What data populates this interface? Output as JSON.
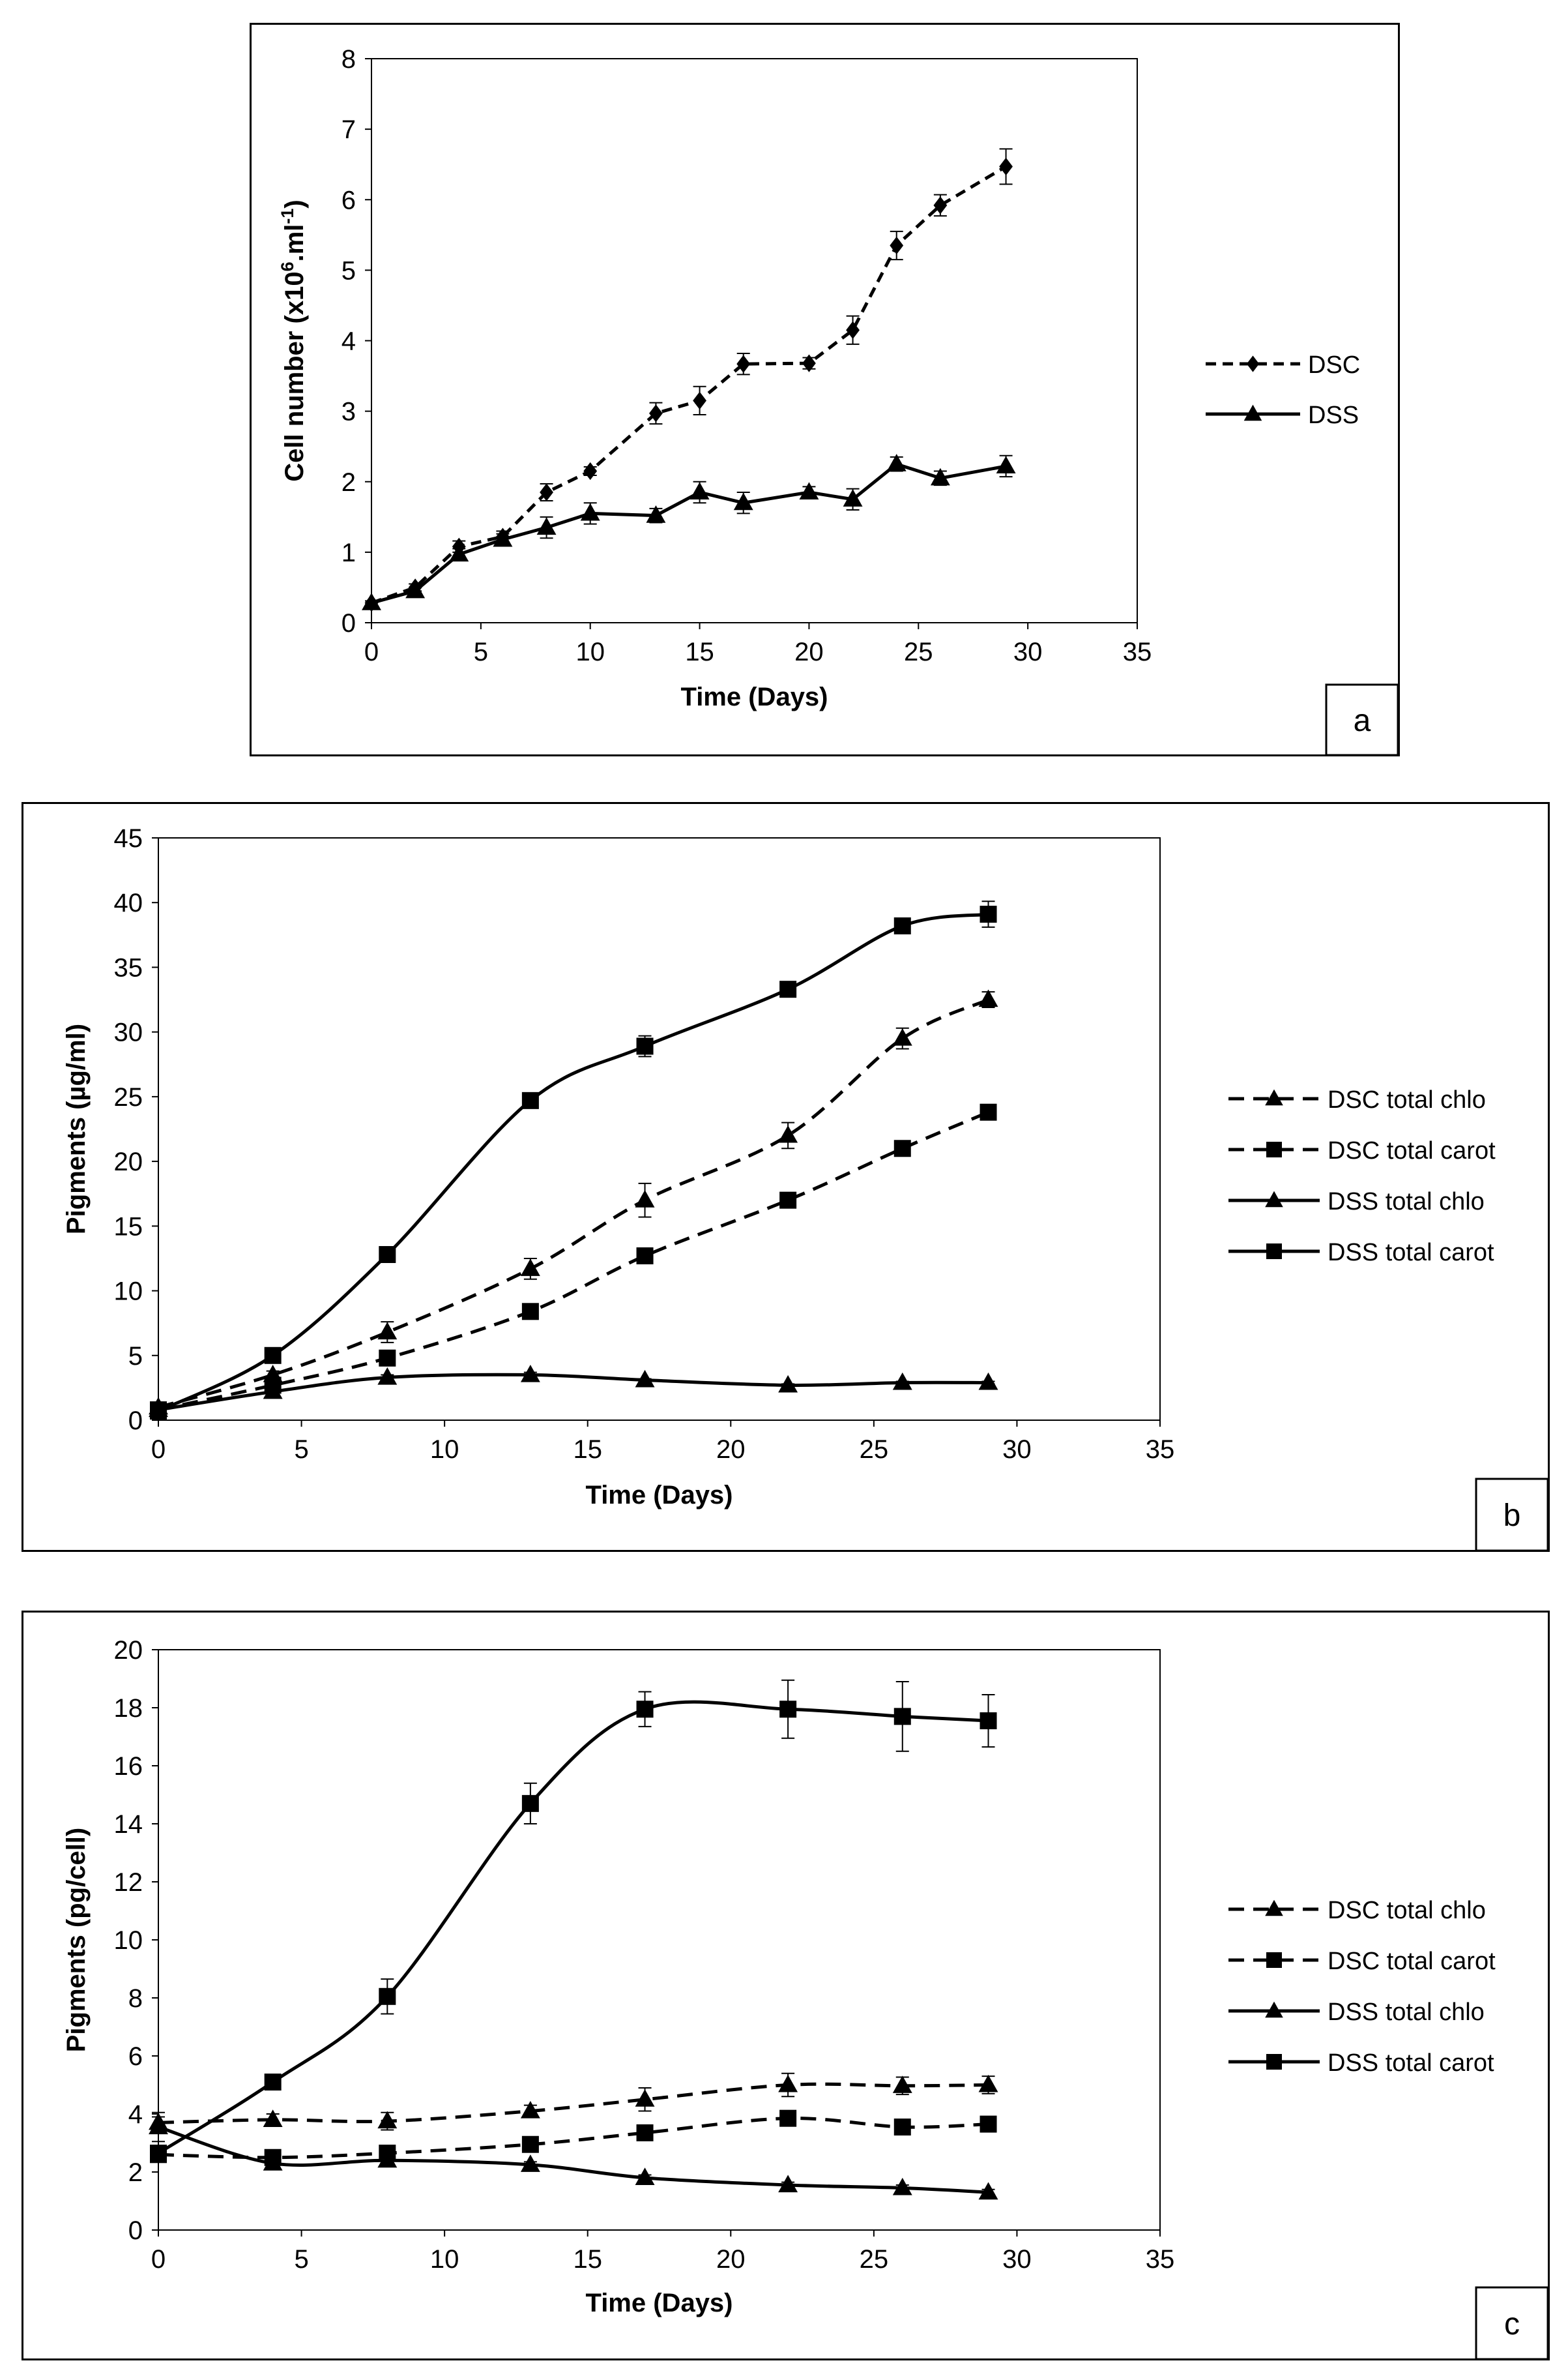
{
  "chart_data": [
    {
      "panel_label": "a",
      "type": "line",
      "xlabel": "Time (Days)",
      "ylabel": "Cell number (x10",
      "ylabel_sup": "6",
      "ylabel_mid": ".ml",
      "ylabel_sup2": "-1",
      "ylabel_end": ")",
      "xlim": [
        0,
        35
      ],
      "ylim": [
        0,
        8
      ],
      "xticks": [
        0,
        5,
        10,
        15,
        20,
        25,
        30,
        35
      ],
      "yticks": [
        0,
        1,
        2,
        3,
        4,
        5,
        6,
        7,
        8
      ],
      "legend_position": "right",
      "series": [
        {
          "name": "DSC",
          "marker": "diamond",
          "dash": true,
          "x": [
            0,
            2,
            4,
            6,
            8,
            10,
            13,
            15,
            17,
            20,
            22,
            24,
            26,
            29
          ],
          "y": [
            0.28,
            0.5,
            1.08,
            1.22,
            1.85,
            2.15,
            2.97,
            3.15,
            3.67,
            3.68,
            4.15,
            5.35,
            5.92,
            6.47
          ],
          "err": [
            0.03,
            0.05,
            0.08,
            0.08,
            0.12,
            0.06,
            0.15,
            0.2,
            0.15,
            0.08,
            0.2,
            0.2,
            0.15,
            0.25
          ]
        },
        {
          "name": "DSS",
          "marker": "triangle",
          "dash": false,
          "x": [
            0,
            2,
            4,
            6,
            8,
            10,
            13,
            15,
            17,
            20,
            22,
            24,
            26,
            29
          ],
          "y": [
            0.28,
            0.45,
            0.97,
            1.18,
            1.35,
            1.55,
            1.52,
            1.85,
            1.7,
            1.85,
            1.75,
            2.25,
            2.05,
            2.22
          ],
          "err": [
            0.03,
            0.05,
            0.08,
            0.08,
            0.15,
            0.15,
            0.1,
            0.15,
            0.15,
            0.08,
            0.15,
            0.1,
            0.1,
            0.15
          ]
        }
      ]
    },
    {
      "panel_label": "b",
      "type": "line",
      "xlabel": "Time (Days)",
      "ylabel": "Pigments (µg/ml)",
      "xlim": [
        0,
        35
      ],
      "ylim": [
        0,
        45
      ],
      "xticks": [
        0,
        5,
        10,
        15,
        20,
        25,
        30,
        35
      ],
      "yticks": [
        0,
        5,
        10,
        15,
        20,
        25,
        30,
        35,
        40,
        45
      ],
      "legend_position": "right",
      "series": [
        {
          "name": "DSC total chlo",
          "marker": "triangle",
          "dash": true,
          "x": [
            0,
            4,
            8,
            13,
            17,
            22,
            26,
            29
          ],
          "y": [
            1.0,
            3.5,
            6.8,
            11.7,
            17.0,
            22.0,
            29.5,
            32.5
          ],
          "err": [
            0.1,
            0.3,
            0.8,
            0.8,
            1.3,
            1.0,
            0.8,
            0.6
          ]
        },
        {
          "name": "DSC total carot",
          "marker": "square",
          "dash": true,
          "x": [
            0,
            4,
            8,
            13,
            17,
            22,
            26,
            29
          ],
          "y": [
            0.8,
            2.7,
            4.8,
            8.4,
            12.7,
            17.0,
            21.0,
            23.8
          ],
          "err": [
            0.1,
            0.2,
            0.3,
            0.3,
            0.3,
            0.3,
            0.3,
            0.3
          ]
        },
        {
          "name": "DSS total chlo",
          "marker": "triangle",
          "dash": false,
          "x": [
            0,
            4,
            8,
            13,
            17,
            22,
            26,
            29
          ],
          "y": [
            0.8,
            2.2,
            3.3,
            3.5,
            3.1,
            2.7,
            2.9,
            2.9
          ],
          "err": [
            0.1,
            0.2,
            0.2,
            0.2,
            0.1,
            0.1,
            0.1,
            0.1
          ]
        },
        {
          "name": "DSS total carot",
          "marker": "square",
          "dash": false,
          "x": [
            0,
            4,
            8,
            13,
            17,
            22,
            26,
            29
          ],
          "y": [
            0.7,
            5.0,
            12.8,
            24.7,
            28.9,
            33.3,
            38.2,
            39.1
          ],
          "err": [
            0.1,
            0.2,
            0.3,
            0.3,
            0.8,
            0.3,
            0.3,
            1.0
          ]
        }
      ]
    },
    {
      "panel_label": "c",
      "type": "line",
      "xlabel": "Time (Days)",
      "ylabel": "Pigments (pg/cell)",
      "xlim": [
        0,
        35
      ],
      "ylim": [
        0,
        20
      ],
      "xticks": [
        0,
        5,
        10,
        15,
        20,
        25,
        30,
        35
      ],
      "yticks": [
        0,
        2,
        4,
        6,
        8,
        10,
        12,
        14,
        16,
        18,
        20
      ],
      "legend_position": "right",
      "series": [
        {
          "name": "DSC total chlo",
          "marker": "triangle",
          "dash": true,
          "x": [
            0,
            4,
            8,
            13,
            17,
            22,
            26,
            29
          ],
          "y": [
            3.7,
            3.8,
            3.75,
            4.1,
            4.5,
            5.0,
            4.97,
            5.0
          ],
          "err": [
            0.2,
            0.2,
            0.3,
            0.2,
            0.4,
            0.4,
            0.3,
            0.3
          ]
        },
        {
          "name": "DSC total carot",
          "marker": "square",
          "dash": true,
          "x": [
            0,
            4,
            8,
            13,
            17,
            22,
            26,
            29
          ],
          "y": [
            2.6,
            2.5,
            2.65,
            2.95,
            3.35,
            3.85,
            3.55,
            3.65
          ],
          "err": [
            0.1,
            0.1,
            0.1,
            0.1,
            0.2,
            0.2,
            0.1,
            0.1
          ]
        },
        {
          "name": "DSS total chlo",
          "marker": "triangle",
          "dash": false,
          "x": [
            0,
            4,
            8,
            13,
            17,
            22,
            26,
            29
          ],
          "y": [
            3.55,
            2.3,
            2.4,
            2.25,
            1.8,
            1.55,
            1.45,
            1.3
          ],
          "err": [
            0.5,
            0.1,
            0.1,
            0.1,
            0.1,
            0.1,
            0.1,
            0.1
          ]
        },
        {
          "name": "DSS total carot",
          "marker": "square",
          "dash": false,
          "x": [
            0,
            4,
            8,
            13,
            17,
            22,
            26,
            29
          ],
          "y": [
            2.65,
            5.1,
            8.05,
            14.7,
            17.95,
            17.95,
            17.7,
            17.55
          ],
          "err": [
            0.1,
            0.2,
            0.6,
            0.7,
            0.6,
            1.0,
            1.2,
            0.9
          ]
        }
      ]
    }
  ]
}
